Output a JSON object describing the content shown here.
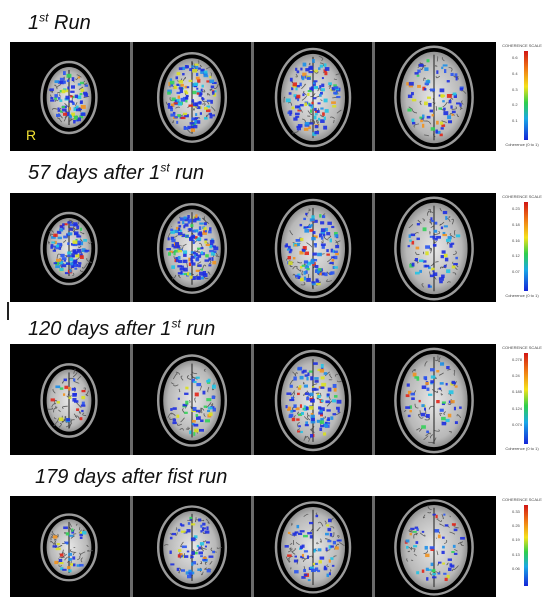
{
  "rows": [
    {
      "title_pre": "1",
      "title_sup": "st",
      "title_post": " Run",
      "scale_title": "COHERENCE SCALE",
      "scale_foot": "Coherence (0 to 1)",
      "scale_ticks": [
        "0.6",
        "0.4",
        "0.3",
        "0.2",
        "0.1",
        ""
      ]
    },
    {
      "title_pre": "57 days after 1",
      "title_sup": "st",
      "title_post": " run",
      "scale_title": "COHERENCE SCALE",
      "scale_foot": "Coherence (0 to 1)",
      "scale_ticks": [
        "0.23",
        "0.18",
        "0.16",
        "0.12",
        "0.07",
        ""
      ]
    },
    {
      "title_pre": "120 days after 1",
      "title_sup": "st",
      "title_post": " run",
      "scale_title": "COHERENCE SCALE",
      "scale_foot": "Coherence (0 to 1)",
      "scale_ticks": [
        "0.278",
        "0.24",
        "0.185",
        "0.124",
        "0.074",
        ""
      ]
    },
    {
      "title_pre": "179 days after fist run",
      "title_sup": "",
      "title_post": "",
      "scale_title": "COHERENCE SCALE",
      "scale_foot": "",
      "scale_ticks": [
        "0.33",
        "0.25",
        "0.19",
        "0.13",
        "0.06",
        ""
      ]
    }
  ],
  "orientation_label": "R",
  "colors": {
    "background": "#000000",
    "brain": "#cfcfcf",
    "label": "#f2e232"
  }
}
